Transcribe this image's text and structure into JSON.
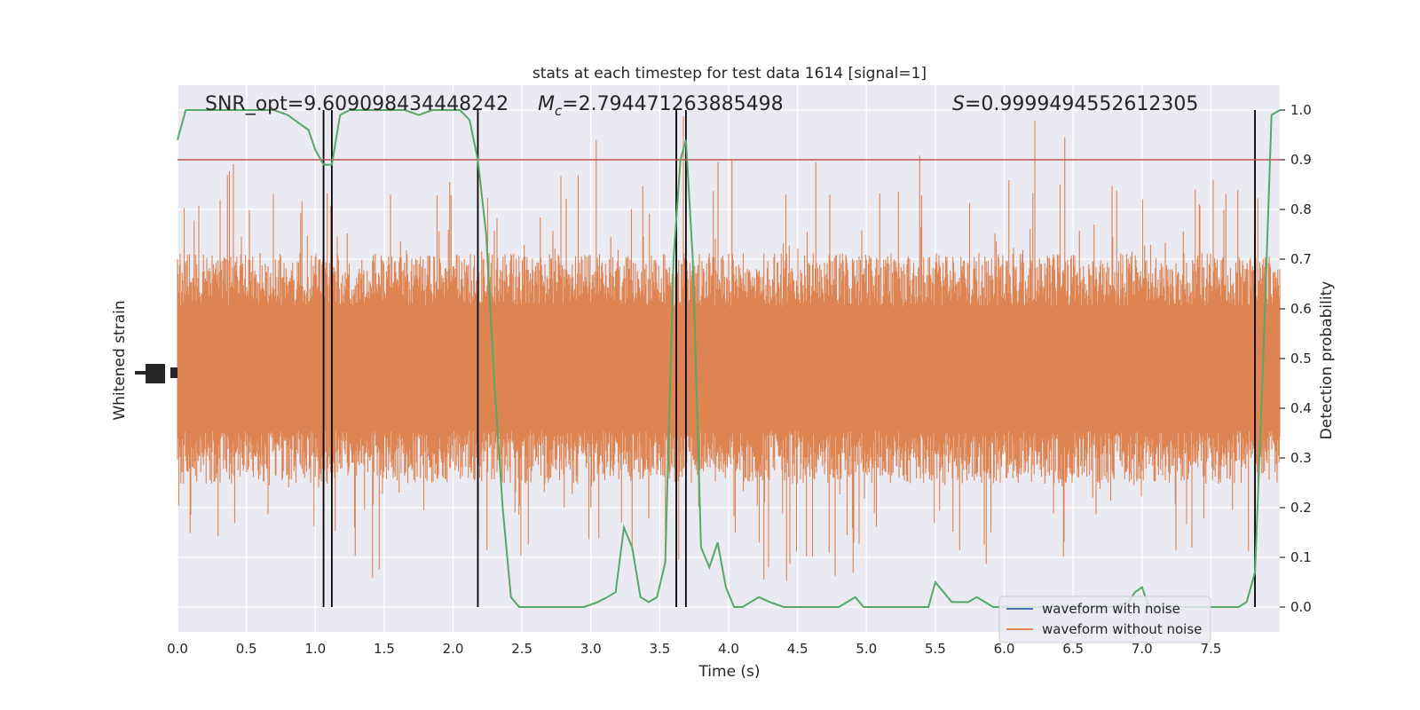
{
  "chart_data": {
    "type": "line",
    "title": "stats at each timestep for test data 1614 [signal=1]",
    "xlabel": "Time (s)",
    "ylabel_left": "Whitened strain",
    "ylabel_right": "Detection probability",
    "xlim": [
      0,
      8
    ],
    "ylim_right": [
      -0.05,
      1.05
    ],
    "x_ticks": [
      "0.0",
      "0.5",
      "1.0",
      "1.5",
      "2.0",
      "2.5",
      "3.0",
      "3.5",
      "4.0",
      "4.5",
      "5.0",
      "5.5",
      "6.0",
      "6.5",
      "7.0",
      "7.5"
    ],
    "x_tick_values": [
      0,
      0.5,
      1,
      1.5,
      2,
      2.5,
      3,
      3.5,
      4,
      4.5,
      5,
      5.5,
      6,
      6.5,
      7,
      7.5
    ],
    "y_ticks_right": [
      "0.0",
      "0.1",
      "0.2",
      "0.3",
      "0.4",
      "0.5",
      "0.6",
      "0.7",
      "0.8",
      "0.9",
      "1.0"
    ],
    "y_tick_values_right": [
      0,
      0.1,
      0.2,
      0.3,
      0.4,
      0.5,
      0.6,
      0.7,
      0.8,
      0.9,
      1.0
    ],
    "grid": true,
    "legend_position": "bottom-right",
    "annotations": {
      "snr": "SNR_opt=9.609098434448242",
      "mc_symbol": "M",
      "mc_sub": "c",
      "mc_value": "=2.794471263885498",
      "s_symbol": "S",
      "s_value": "=0.9999494552612305"
    },
    "threshold": {
      "value": 0.9,
      "color": "#c44e52"
    },
    "vertical_lines": [
      1.06,
      1.12,
      2.18,
      3.62,
      3.69,
      7.82
    ],
    "series": [
      {
        "name": "waveform with noise",
        "color": "#4c72b0"
      },
      {
        "name": "waveform without noise",
        "color": "#dd8452"
      },
      {
        "color": "#55a868",
        "x": [
          0.0,
          0.06,
          0.12,
          0.2,
          0.3,
          0.4,
          0.5,
          0.6,
          0.7,
          0.8,
          0.9,
          0.95,
          1.0,
          1.06,
          1.12,
          1.18,
          1.25,
          1.35,
          1.45,
          1.55,
          1.65,
          1.75,
          1.85,
          1.95,
          2.05,
          2.12,
          2.18,
          2.24,
          2.3,
          2.36,
          2.42,
          2.48,
          2.55,
          2.65,
          2.75,
          2.85,
          2.95,
          3.05,
          3.12,
          3.18,
          3.24,
          3.3,
          3.36,
          3.42,
          3.48,
          3.54,
          3.6,
          3.65,
          3.69,
          3.74,
          3.8,
          3.86,
          3.92,
          3.98,
          4.04,
          4.1,
          4.16,
          4.22,
          4.3,
          4.4,
          4.5,
          4.6,
          4.7,
          4.8,
          4.86,
          4.92,
          4.98,
          5.05,
          5.15,
          5.25,
          5.35,
          5.45,
          5.5,
          5.56,
          5.62,
          5.68,
          5.74,
          5.8,
          5.86,
          5.92,
          6.0,
          6.1,
          6.2,
          6.3,
          6.4,
          6.5,
          6.6,
          6.7,
          6.8,
          6.9,
          6.95,
          7.0,
          7.05,
          7.1,
          7.2,
          7.3,
          7.4,
          7.5,
          7.6,
          7.7,
          7.76,
          7.82,
          7.88,
          7.94,
          8.0
        ],
        "y": [
          0.94,
          1.0,
          1.0,
          1.0,
          1.0,
          1.0,
          1.0,
          1.0,
          1.0,
          0.99,
          0.97,
          0.96,
          0.92,
          0.89,
          0.89,
          0.99,
          1.0,
          1.0,
          1.0,
          1.0,
          1.0,
          0.99,
          1.0,
          1.0,
          1.0,
          0.98,
          0.9,
          0.75,
          0.45,
          0.2,
          0.02,
          0.0,
          0.0,
          0.0,
          0.0,
          0.0,
          0.0,
          0.01,
          0.02,
          0.03,
          0.16,
          0.12,
          0.02,
          0.01,
          0.02,
          0.09,
          0.7,
          0.9,
          0.94,
          0.7,
          0.12,
          0.08,
          0.13,
          0.04,
          0.0,
          0.0,
          0.01,
          0.02,
          0.01,
          0.0,
          0.0,
          0.0,
          0.0,
          0.0,
          0.01,
          0.02,
          0.0,
          0.0,
          0.0,
          0.0,
          0.0,
          0.0,
          0.05,
          0.03,
          0.01,
          0.01,
          0.01,
          0.02,
          0.01,
          0.0,
          0.0,
          0.0,
          0.0,
          0.0,
          0.0,
          0.0,
          0.0,
          0.0,
          0.0,
          0.01,
          0.03,
          0.04,
          0.0,
          0.0,
          0.0,
          0.0,
          0.0,
          0.0,
          0.0,
          0.0,
          0.01,
          0.07,
          0.5,
          0.99,
          1.0
        ]
      }
    ]
  }
}
